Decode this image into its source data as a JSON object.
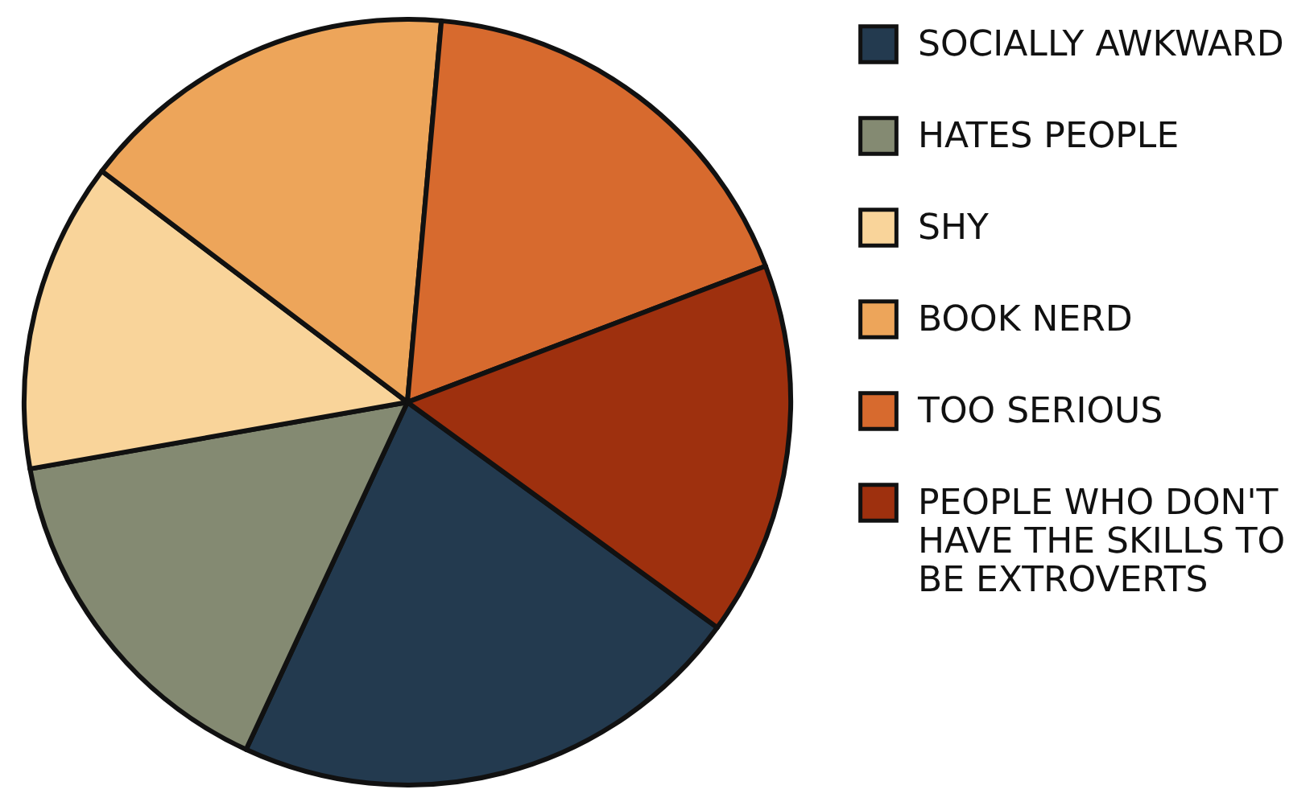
{
  "chart_data": {
    "type": "pie",
    "categories": [
      "SOCIALLY AWKWARD",
      "HATES PEOPLE",
      "SHY",
      "BOOK NERD",
      "TOO SERIOUS",
      "PEOPLE WHO DON'T HAVE THE SKILLS TO BE EXTROVERTS"
    ],
    "values": [
      21.9,
      15.3,
      13.1,
      16.1,
      17.8,
      15.8
    ],
    "colors": [
      "#233a4f",
      "#848a72",
      "#f9d49a",
      "#eda55a",
      "#d76a2e",
      "#9e300e"
    ],
    "legend": "right"
  }
}
